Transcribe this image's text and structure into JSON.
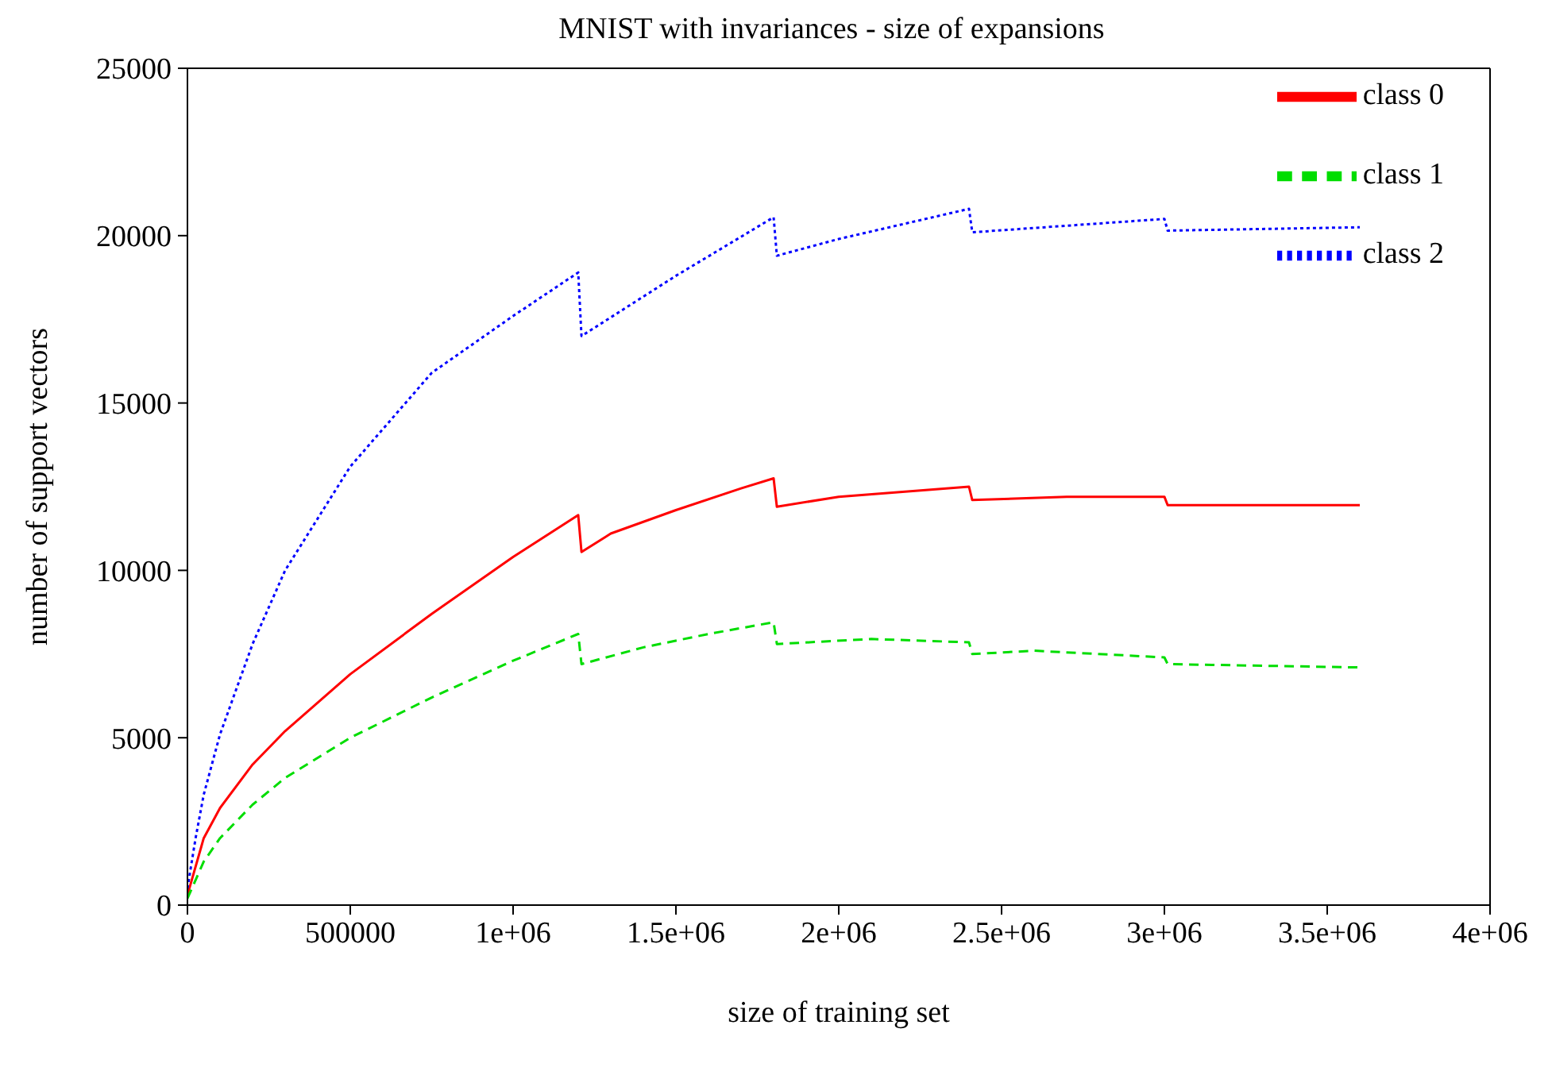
{
  "chart_data": {
    "type": "line",
    "title": "MNIST with invariances - size of expansions",
    "xlabel": "size of training set",
    "ylabel": "number of support vectors",
    "xlim": [
      0,
      4000000
    ],
    "xticks": [
      0,
      500000,
      {
        "value": 1000000,
        "label": "1e+06"
      },
      {
        "value": 1500000,
        "label": "1.5e+06"
      },
      {
        "value": 2000000,
        "label": "2e+06"
      },
      {
        "value": 2500000,
        "label": "2.5e+06"
      },
      {
        "value": 3000000,
        "label": "3e+06"
      },
      {
        "value": 3500000,
        "label": "3.5e+06"
      },
      {
        "value": 4000000,
        "label": "4e+06"
      }
    ],
    "ylim": [
      0,
      25000
    ],
    "yticks": [
      0,
      5000,
      10000,
      15000,
      20000,
      25000
    ],
    "grid": false,
    "legend": "top right",
    "marker": "none",
    "series": [
      {
        "name": "class 0",
        "color": "#ff0000",
        "line_style": "solid",
        "x": [
          0,
          50000,
          100000,
          200000,
          300000,
          500000,
          750000,
          1000000,
          1200000,
          1210000,
          1300000,
          1500000,
          1700000,
          1800000,
          1810000,
          2000000,
          2400000,
          2410000,
          2700000,
          3000000,
          3010000,
          3600000
        ],
        "values": [
          300,
          2000,
          2900,
          4200,
          5200,
          6900,
          8700,
          10400,
          11650,
          10550,
          11100,
          11800,
          12450,
          12750,
          11900,
          12200,
          12500,
          12100,
          12200,
          12200,
          11950,
          11950
        ]
      },
      {
        "name": "class 1",
        "color": "#00dd00",
        "line_style": "dashed",
        "x": [
          0,
          50000,
          100000,
          200000,
          300000,
          500000,
          750000,
          1000000,
          1200000,
          1210000,
          1400000,
          1600000,
          1800000,
          1810000,
          2100000,
          2400000,
          2410000,
          2600000,
          3000000,
          3010000,
          3600000
        ],
        "values": [
          200,
          1300,
          2000,
          3000,
          3800,
          5000,
          6200,
          7300,
          8100,
          7200,
          7700,
          8100,
          8450,
          7800,
          7950,
          7850,
          7500,
          7600,
          7400,
          7200,
          7100
        ]
      },
      {
        "name": "class 2",
        "color": "#0000ff",
        "line_style": "dotted",
        "x": [
          0,
          25000,
          50000,
          100000,
          200000,
          300000,
          500000,
          750000,
          1000000,
          1200000,
          1210000,
          1500000,
          1800000,
          1810000,
          2000000,
          2400000,
          2410000,
          3000000,
          3010000,
          3600000
        ],
        "values": [
          500,
          2000,
          3300,
          5100,
          7800,
          10000,
          13100,
          15900,
          17600,
          18900,
          17000,
          18800,
          20550,
          19400,
          19900,
          20800,
          20100,
          20500,
          20150,
          20250
        ]
      }
    ]
  }
}
